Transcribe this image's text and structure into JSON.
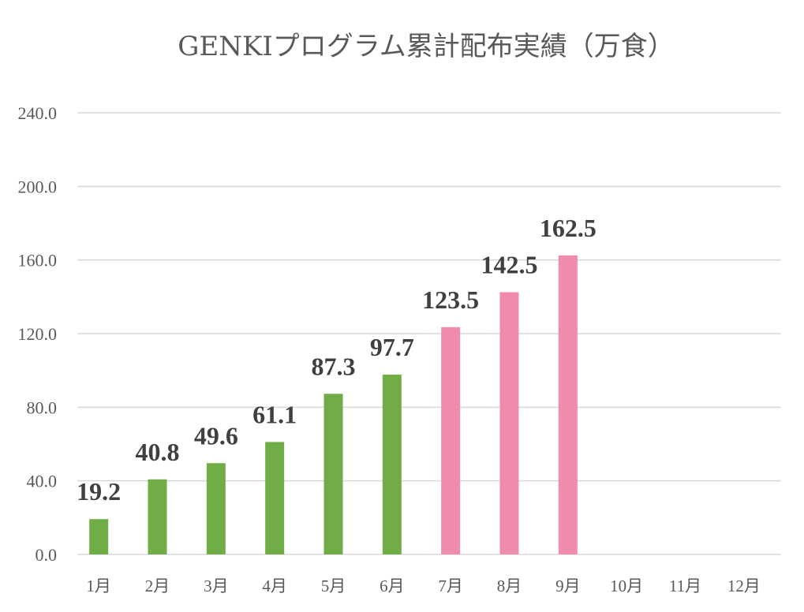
{
  "chart_data": {
    "type": "bar",
    "title": "GENKIプログラム累計配布実績（万食）",
    "categories": [
      "1月",
      "2月",
      "3月",
      "4月",
      "5月",
      "6月",
      "7月",
      "8月",
      "9月",
      "10月",
      "11月",
      "12月"
    ],
    "values": [
      19.2,
      40.8,
      49.6,
      61.1,
      87.3,
      97.7,
      123.5,
      142.5,
      162.5,
      null,
      null,
      null
    ],
    "data_labels": [
      "19.2",
      "40.8",
      "49.6",
      "61.1",
      "87.3",
      "97.7",
      "123.5",
      "142.5",
      "162.5",
      "",
      "",
      ""
    ],
    "ylim": [
      0,
      240
    ],
    "yticks": [
      0,
      40,
      80,
      120,
      160,
      200,
      240
    ],
    "ytick_labels": [
      "0.0",
      "40.0",
      "80.0",
      "120.0",
      "160.0",
      "200.0",
      "240.0"
    ],
    "xlabel": "",
    "ylabel": "",
    "grid": true,
    "legend": "none",
    "colors": {
      "first_half": "#70ad47",
      "second_half": "#ef8bac",
      "grid": "#d9d9d9",
      "text": "#595959",
      "label": "#404040"
    },
    "bar_color_index_split": 6
  }
}
